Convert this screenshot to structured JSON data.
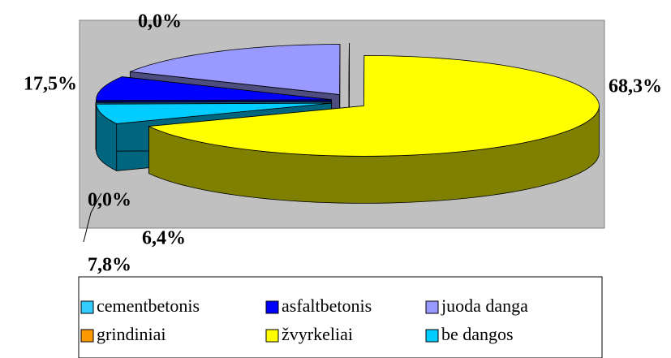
{
  "chart_data": {
    "type": "pie3d",
    "categories": [
      "cementbetonis",
      "asfaltbetonis",
      "juoda danga",
      "grindiniai",
      "žvyrkeliai",
      "be dangos"
    ],
    "values": [
      0,
      7.8,
      17.5,
      0,
      68.3,
      6.4
    ],
    "value_labels": [
      "0,0%",
      "7,8%",
      "17,5%",
      "0,0%",
      "68,3%",
      "6,4%"
    ],
    "colors": [
      "#33ccff",
      "#0000ff",
      "#9999ff",
      "#ff9900",
      "#ffff00",
      "#00ccff"
    ]
  }
}
